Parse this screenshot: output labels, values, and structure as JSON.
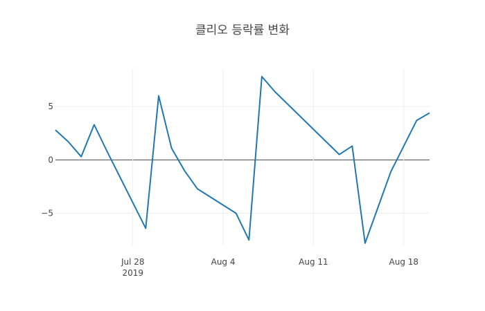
{
  "chart_data": {
    "type": "line",
    "title": "클리오 등락률 변화",
    "xlabel": "",
    "ylabel": "",
    "x": [
      "2019-07-22",
      "2019-07-23",
      "2019-07-24",
      "2019-07-25",
      "2019-07-26",
      "2019-07-29",
      "2019-07-30",
      "2019-07-31",
      "2019-08-01",
      "2019-08-02",
      "2019-08-05",
      "2019-08-06",
      "2019-08-07",
      "2019-08-08",
      "2019-08-13",
      "2019-08-14",
      "2019-08-15",
      "2019-08-17",
      "2019-08-19",
      "2019-08-20"
    ],
    "series": [
      {
        "name": "",
        "color": "#1f77b4",
        "values": [
          2.8,
          1.7,
          0.3,
          3.3,
          0.8,
          -6.4,
          6.0,
          1.1,
          -1.0,
          -2.7,
          -5.0,
          -7.5,
          7.8,
          6.4,
          0.5,
          1.3,
          -7.8,
          -1.1,
          3.7,
          4.4
        ]
      }
    ],
    "xlim": [
      "2019-07-22",
      "2019-08-20"
    ],
    "ylim": [
      -8,
      8.5
    ],
    "xticks": [
      {
        "date": "2019-07-28",
        "label": "Jul 28",
        "sublabel": "2019"
      },
      {
        "date": "2019-08-04",
        "label": "Aug 4",
        "sublabel": ""
      },
      {
        "date": "2019-08-11",
        "label": "Aug 11",
        "sublabel": ""
      },
      {
        "date": "2019-08-18",
        "label": "Aug 18",
        "sublabel": ""
      }
    ],
    "yticks": [
      {
        "value": 5,
        "label": "5"
      },
      {
        "value": 0,
        "label": "0"
      },
      {
        "value": -5,
        "label": "−5"
      }
    ],
    "grid": true,
    "legend": "none"
  }
}
